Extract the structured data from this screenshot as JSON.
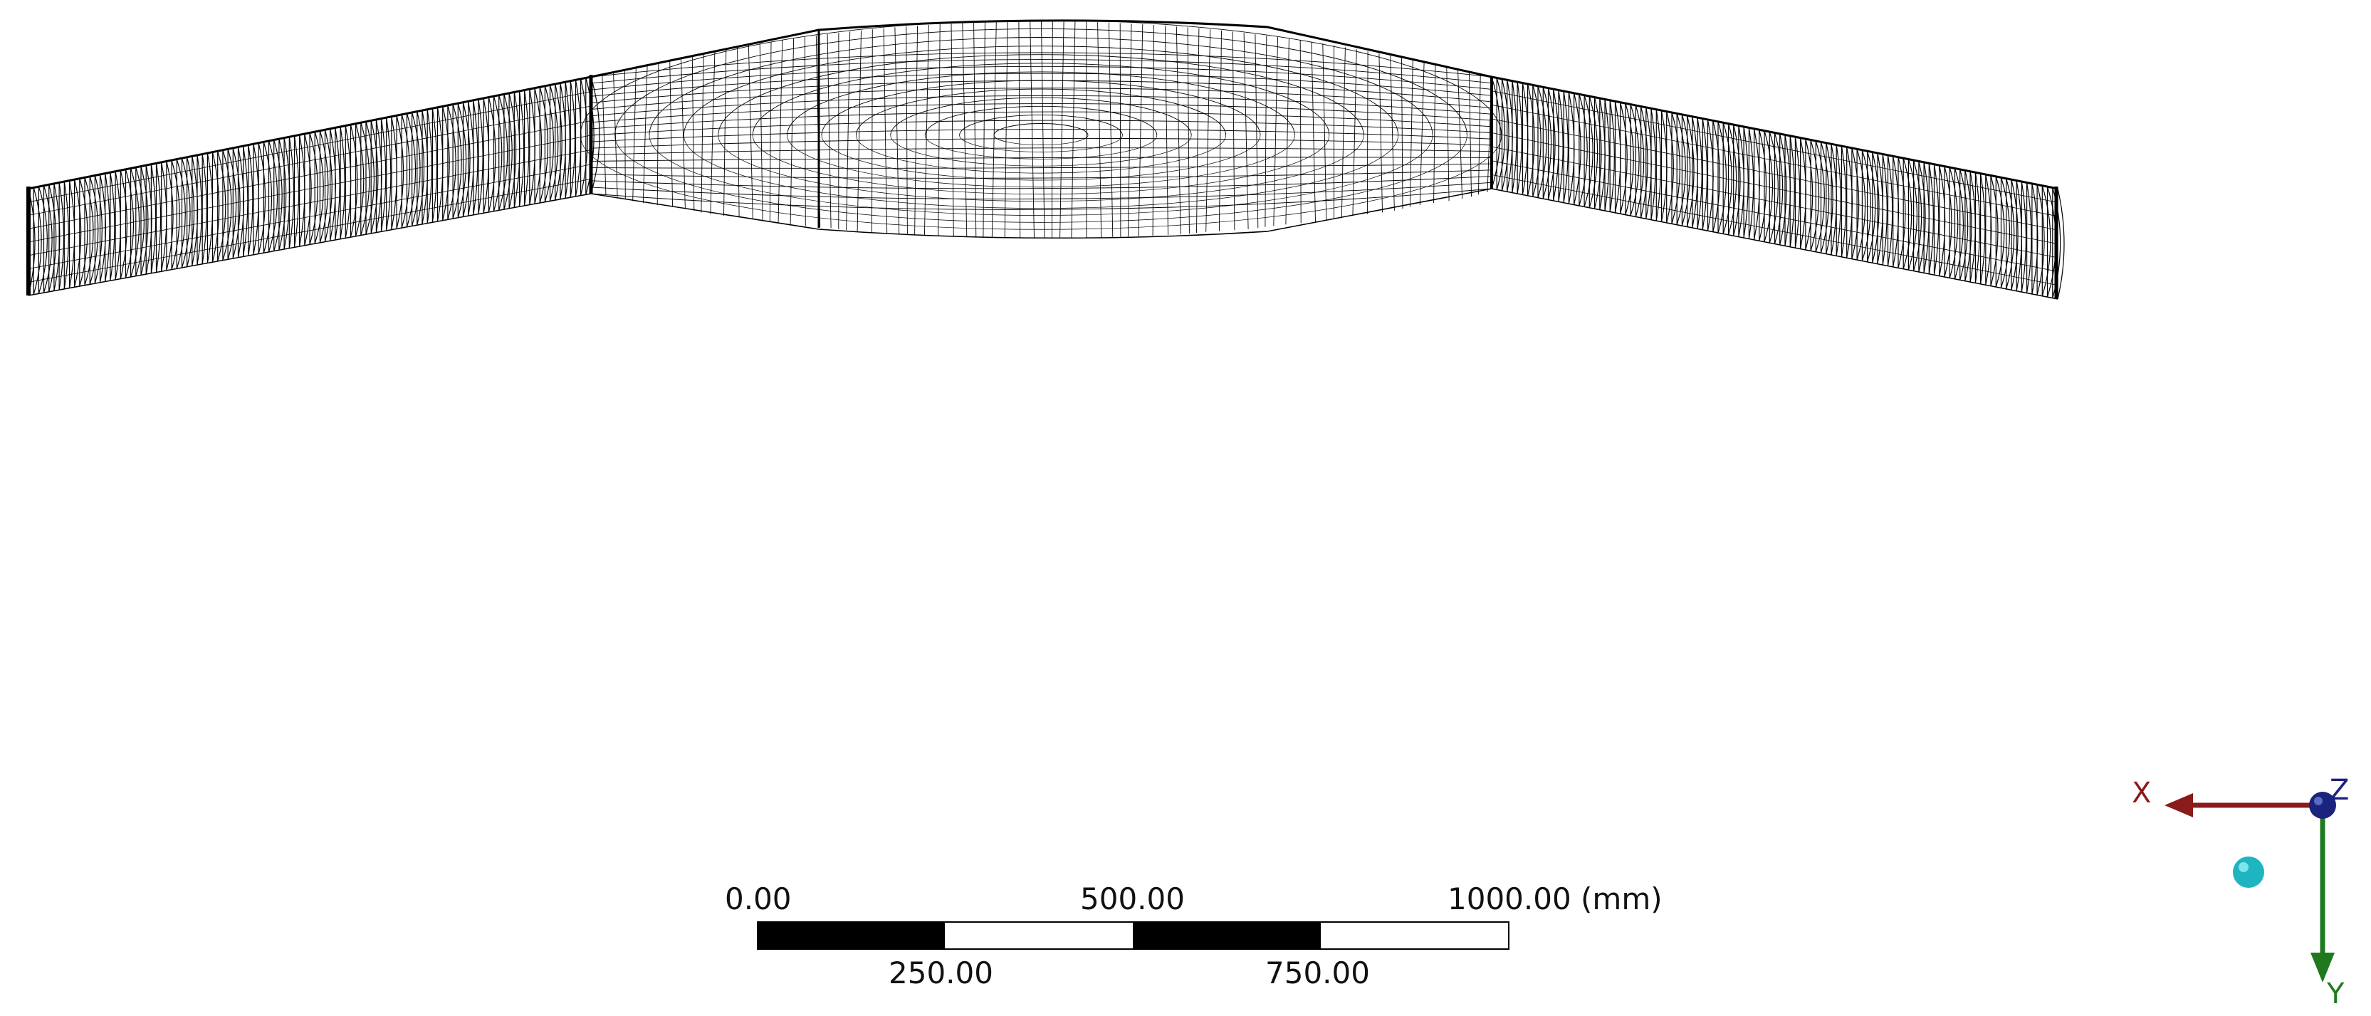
{
  "scale_bar": {
    "top_labels": [
      "0.00",
      "500.00",
      "1000.00 (mm)"
    ],
    "bottom_labels": [
      "250.00",
      "750.00"
    ]
  },
  "triad": {
    "x_label": "X",
    "y_label": "Y",
    "z_label": "Z",
    "colors": {
      "x": "#8b1a1a",
      "y": "#1f7a1f",
      "z": "#1a237e",
      "iso_ball": "#1fb5c0"
    }
  },
  "model": {
    "view": "wireframe mesh",
    "line_color": "#000000"
  }
}
